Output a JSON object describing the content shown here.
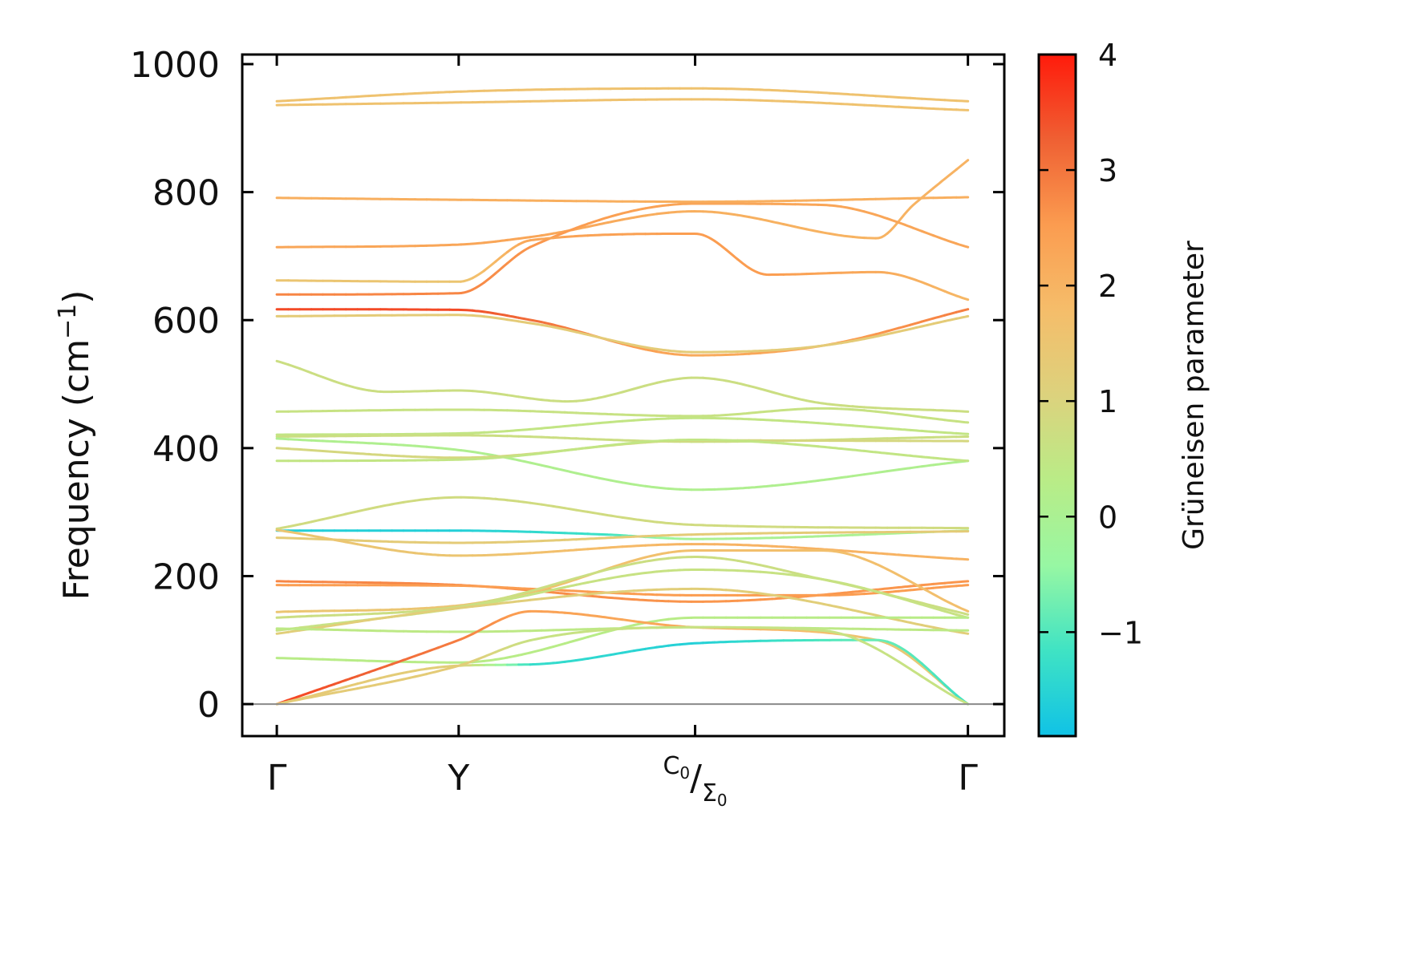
{
  "chart_data": {
    "type": "line",
    "title": "",
    "xlabel": "",
    "ylabel": "Frequency (cm",
    "ylabel_sup": "−1",
    "ylabel_close": ")",
    "ylim": [
      -50,
      1015
    ],
    "yticks": [
      0,
      200,
      400,
      600,
      800,
      1000
    ],
    "ytick_labels": [
      "0",
      "200",
      "400",
      "600",
      "800",
      "1000"
    ],
    "xticks": [
      0,
      1,
      2.3,
      3.8
    ],
    "xtick_labels": [
      {
        "main": "Γ"
      },
      {
        "main": "Y"
      },
      {
        "sup": "C",
        "sup_sub": "0",
        "main": "/",
        "sub": "Σ",
        "sub_sub": "0"
      },
      {
        "main": "Γ"
      }
    ],
    "xlim": [
      -0.19,
      4.0
    ],
    "grid": false,
    "zero_line": true,
    "colorbar": {
      "label": "Grüneisen parameter",
      "range": [
        -1.9,
        4.0
      ],
      "ticks": [
        -1,
        0,
        1,
        2,
        3,
        4
      ],
      "tick_labels": [
        "−1",
        "0",
        "1",
        "2",
        "3",
        "4"
      ],
      "colormap": [
        "#10c2e6",
        "#3fe3c4",
        "#97f7a3",
        "#b9ec87",
        "#dcd27d",
        "#f5bd6a",
        "#fb9c50",
        "#ef6033",
        "#ff1b0b"
      ]
    },
    "series": [
      {
        "x": [
          0,
          1,
          2.3,
          3.8
        ],
        "y": [
          942,
          957,
          962,
          942
        ],
        "g": [
          1.6,
          1.6,
          1.6,
          1.6
        ]
      },
      {
        "x": [
          0,
          1,
          2.3,
          3.8
        ],
        "y": [
          936,
          940,
          945,
          928
        ],
        "g": [
          1.6,
          1.6,
          1.6,
          1.6
        ]
      },
      {
        "x": [
          0,
          1,
          2.3,
          3.8
        ],
        "y": [
          791,
          788,
          785,
          792
        ],
        "g": [
          2.1,
          2.1,
          2.1,
          2.1
        ]
      },
      {
        "x": [
          0,
          1,
          1.4,
          2.3,
          3.3,
          3.5,
          3.8
        ],
        "y": [
          714,
          718,
          730,
          770,
          728,
          780,
          850
        ],
        "g": [
          2.3,
          2.3,
          2.3,
          2.1,
          2.0,
          2.0,
          2.0
        ]
      },
      {
        "x": [
          0,
          1,
          1.4,
          2.3,
          3.0,
          3.8
        ],
        "y": [
          640,
          642,
          715,
          782,
          780,
          714
        ],
        "g": [
          2.8,
          2.8,
          2.6,
          2.3,
          2.3,
          2.3
        ]
      },
      {
        "x": [
          0,
          1,
          1.4,
          2.3,
          2.7,
          3.3,
          3.8
        ],
        "y": [
          662,
          660,
          725,
          735,
          671,
          675,
          632
        ],
        "g": [
          1.5,
          1.5,
          2.3,
          2.5,
          2.5,
          2.2,
          1.9
        ]
      },
      {
        "x": [
          0,
          1,
          1.4,
          2.3,
          3.0,
          3.8
        ],
        "y": [
          617,
          616,
          600,
          545,
          560,
          617
        ],
        "g": [
          3.5,
          3.5,
          3.1,
          2.2,
          2.4,
          2.9
        ]
      },
      {
        "x": [
          0,
          1,
          1.4,
          2.3,
          3.0,
          3.8
        ],
        "y": [
          606,
          608,
          595,
          550,
          560,
          606
        ],
        "g": [
          1.3,
          1.3,
          1.3,
          1.3,
          1.3,
          1.3
        ]
      },
      {
        "x": [
          0,
          0.6,
          1,
          1.6,
          2.3,
          3.0,
          3.8
        ],
        "y": [
          536,
          488,
          490,
          473,
          510,
          470,
          457
        ],
        "g": [
          0.7,
          0.7,
          0.7,
          0.7,
          0.7,
          0.7,
          0.7
        ]
      },
      {
        "x": [
          0,
          1,
          2.3,
          3.0,
          3.8
        ],
        "y": [
          457,
          460,
          450,
          462,
          440
        ],
        "g": [
          0.6,
          0.6,
          0.6,
          0.6,
          0.6
        ]
      },
      {
        "x": [
          0,
          1,
          2.3,
          3.8
        ],
        "y": [
          421,
          423,
          447,
          422
        ],
        "g": [
          0.5,
          0.5,
          0.5,
          0.5
        ]
      },
      {
        "x": [
          0,
          1,
          2.3,
          3.8
        ],
        "y": [
          418,
          420,
          410,
          418
        ],
        "g": [
          0.7,
          0.7,
          0.7,
          0.7
        ]
      },
      {
        "x": [
          0,
          1,
          2.3,
          3.8
        ],
        "y": [
          415,
          397,
          335,
          380
        ],
        "g": [
          0.1,
          0.1,
          0.1,
          0.1
        ]
      },
      {
        "x": [
          0,
          1,
          2.3,
          3.8
        ],
        "y": [
          400,
          385,
          412,
          411
        ],
        "g": [
          0.9,
          0.9,
          0.9,
          0.9
        ]
      },
      {
        "x": [
          0,
          1,
          2.3,
          3.8
        ],
        "y": [
          380,
          382,
          413,
          380
        ],
        "g": [
          0.5,
          0.5,
          0.5,
          0.5
        ]
      },
      {
        "x": [
          0,
          1,
          2.3,
          3.8
        ],
        "y": [
          274,
          323,
          280,
          275
        ],
        "g": [
          0.8,
          0.8,
          0.8,
          0.8
        ]
      },
      {
        "x": [
          0,
          1,
          1.8,
          2.3,
          3.8
        ],
        "y": [
          271,
          271,
          265,
          258,
          271
        ],
        "g": [
          -1.6,
          -1.6,
          -1.2,
          0.0,
          0.0
        ]
      },
      {
        "x": [
          0,
          1,
          2.3,
          3.8
        ],
        "y": [
          260,
          252,
          265,
          270
        ],
        "g": [
          1.3,
          1.3,
          1.3,
          1.3
        ]
      },
      {
        "x": [
          0,
          1,
          2.3,
          3.8
        ],
        "y": [
          272,
          232,
          250,
          226
        ],
        "g": [
          1.5,
          1.5,
          2.0,
          2.0
        ]
      },
      {
        "x": [
          0,
          1,
          2.3,
          3.8
        ],
        "y": [
          192,
          186,
          160,
          192
        ],
        "g": [
          2.8,
          2.8,
          2.6,
          2.6
        ]
      },
      {
        "x": [
          0,
          1,
          1.4,
          2.3,
          3.0,
          3.8
        ],
        "y": [
          186,
          185,
          180,
          170,
          170,
          186
        ],
        "g": [
          2.5,
          2.5,
          2.5,
          2.5,
          2.5,
          2.5
        ]
      },
      {
        "x": [
          0,
          1,
          1.4,
          2.3,
          3.0,
          3.8
        ],
        "y": [
          144,
          154,
          175,
          240,
          240,
          145
        ],
        "g": [
          1.5,
          1.5,
          1.6,
          1.7,
          1.7,
          1.7
        ]
      },
      {
        "x": [
          0,
          1,
          2.3,
          3.0,
          3.8
        ],
        "y": [
          135,
          152,
          230,
          195,
          140
        ],
        "g": [
          0.7,
          0.7,
          0.7,
          0.7,
          0.7
        ]
      },
      {
        "x": [
          0,
          1,
          2.3,
          3.0,
          3.8
        ],
        "y": [
          115,
          150,
          210,
          195,
          135
        ],
        "g": [
          0.6,
          0.6,
          0.6,
          0.6,
          0.6
        ]
      },
      {
        "x": [
          0,
          1,
          2.3,
          3.8
        ],
        "y": [
          110,
          150,
          180,
          110
        ],
        "g": [
          1.2,
          1.2,
          1.2,
          1.2
        ]
      },
      {
        "x": [
          0,
          1,
          2.3,
          3.8
        ],
        "y": [
          118,
          113,
          120,
          115
        ],
        "g": [
          0.4,
          0.4,
          0.4,
          0.4
        ]
      },
      {
        "x": [
          0,
          1,
          2.3,
          3.8
        ],
        "y": [
          72,
          65,
          135,
          135
        ],
        "g": [
          0.3,
          0.3,
          0.3,
          0.3
        ]
      },
      {
        "x": [
          0,
          1,
          1.4,
          2.3,
          3.3,
          3.8
        ],
        "y": [
          0,
          100,
          145,
          120,
          100,
          0
        ],
        "g": [
          3.6,
          2.9,
          2.4,
          2.2,
          1.5,
          1.2
        ]
      },
      {
        "x": [
          0,
          1,
          1.4,
          2.3,
          3.3,
          3.8
        ],
        "y": [
          0,
          60,
          62,
          95,
          100,
          0
        ],
        "g": [
          1.4,
          1.2,
          -1.3,
          -1.6,
          -0.8,
          -1.2
        ]
      },
      {
        "x": [
          0,
          1,
          1.4,
          2.3,
          3.0,
          3.8
        ],
        "y": [
          0,
          60,
          100,
          120,
          115,
          0
        ],
        "g": [
          1.3,
          1.3,
          0.6,
          0.6,
          0.6,
          0.6
        ]
      }
    ]
  }
}
